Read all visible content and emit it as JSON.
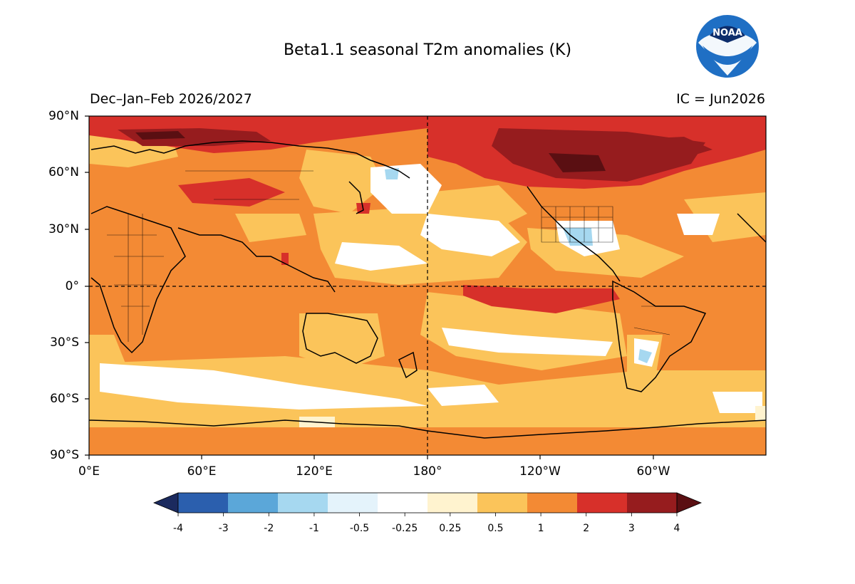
{
  "header": {
    "title": "Beta1.1 seasonal T2m anomalies (K)",
    "season": "Dec–Jan–Feb 2026/2027",
    "ic": "IC = Jun2026",
    "logo_text": "NOAA"
  },
  "axes": {
    "y_ticks": [
      "90°N",
      "60°N",
      "30°N",
      "0°",
      "30°S",
      "60°S",
      "90°S"
    ],
    "x_ticks": [
      "0°E",
      "60°E",
      "120°E",
      "180°",
      "120°W",
      "60°W"
    ]
  },
  "colorbar": {
    "levels": [
      "-4",
      "-3",
      "-2",
      "-1",
      "-0.5",
      "-0.25",
      "0.25",
      "0.5",
      "1",
      "2",
      "3",
      "4"
    ],
    "colors": [
      "#1b2a5e",
      "#2b5fae",
      "#5ba7d9",
      "#a6d8f0",
      "#e4f3fb",
      "#ffffff",
      "#fff3cf",
      "#fbc45a",
      "#f38a34",
      "#d7302a",
      "#961c1e",
      "#5a0f12"
    ]
  },
  "map_data": {
    "projection": "PlateCarree (0–360°E)",
    "field": "T2m anomaly (K)",
    "dominant_anomaly": "0.5 to 1 K (orange) over most of the globe",
    "warm_maxima": [
      "Arctic",
      "northern Canada",
      "northern Russia",
      "equatorial eastern Pacific"
    ],
    "near_neutral_areas": [
      "North Pacific",
      "southeastern United States",
      "Southern Ocean"
    ]
  },
  "colors": {
    "accent": "#1f6fc4"
  }
}
